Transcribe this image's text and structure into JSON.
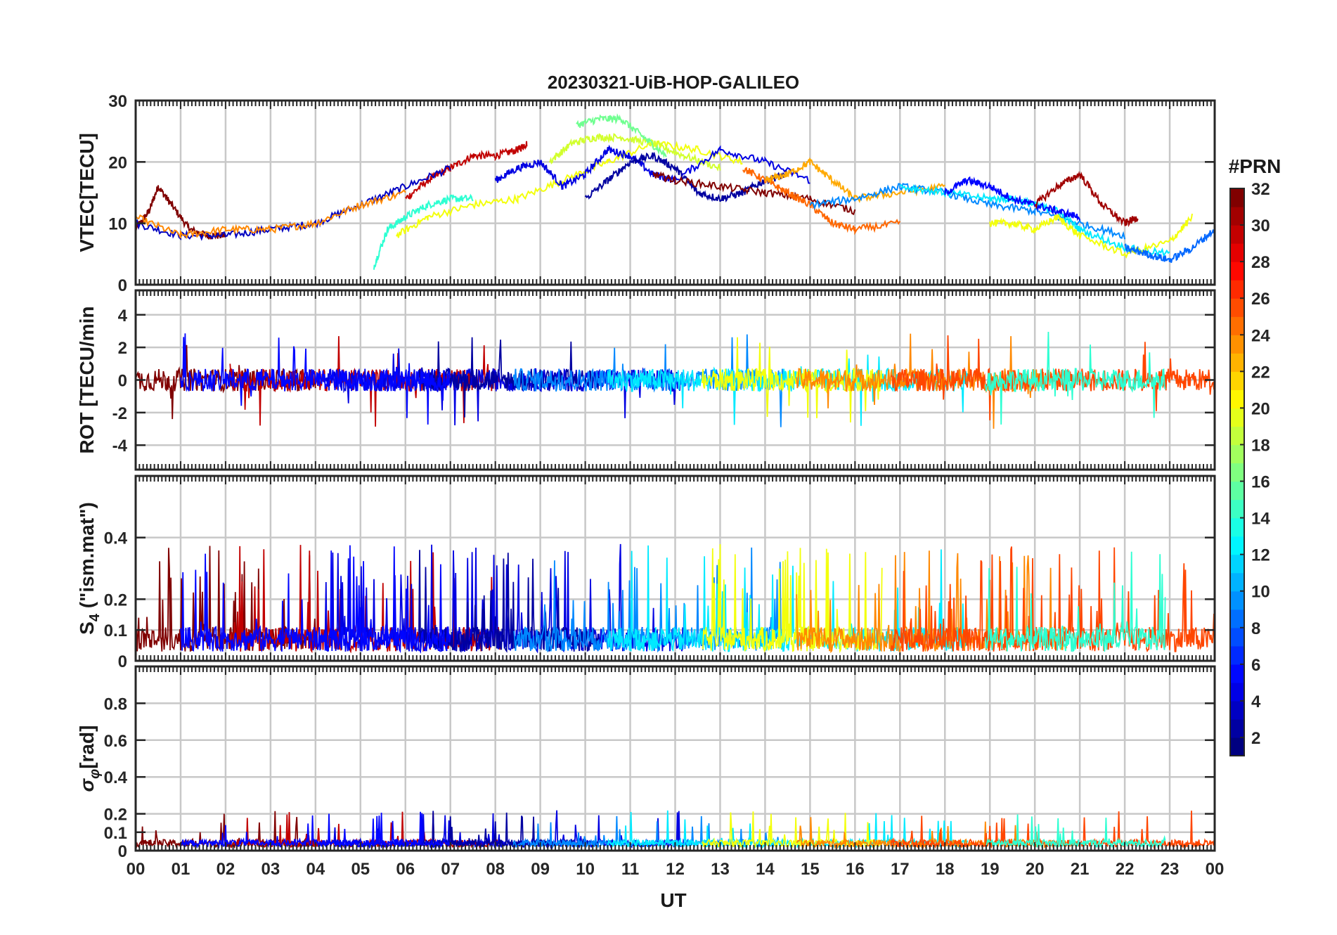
{
  "figure_title": "20230321-UiB-HOP-GALILEO",
  "colorbar": {
    "label": "#PRN",
    "ticks": [
      2,
      4,
      6,
      8,
      10,
      12,
      14,
      16,
      18,
      20,
      22,
      24,
      26,
      28,
      30,
      32
    ],
    "range": [
      1,
      32
    ],
    "colormap": "jet"
  },
  "chart_data": [
    {
      "type": "line",
      "ylabel": "VTEC[TECU]",
      "ylim": [
        0,
        30
      ],
      "yticks": [
        0,
        10,
        20,
        30
      ],
      "grid": true,
      "series": [
        {
          "prn": 33,
          "x": [
            0,
            0.3,
            0.5,
            0.8,
            1.2,
            1.6,
            2.0
          ],
          "y": [
            9,
            12,
            16,
            13,
            9,
            8,
            8
          ]
        },
        {
          "prn": 30,
          "x": [
            6.0,
            6.5,
            7.0,
            7.5,
            8.0,
            8.5,
            8.7
          ],
          "y": [
            14,
            17,
            19,
            21,
            21,
            22,
            23
          ]
        },
        {
          "prn": 3,
          "x": [
            0,
            1,
            2,
            3,
            4,
            5,
            6,
            7
          ],
          "y": [
            10,
            8,
            8,
            9,
            10,
            13,
            16,
            19
          ]
        },
        {
          "prn": 24,
          "x": [
            0,
            1,
            2,
            3,
            4,
            5,
            6
          ],
          "y": [
            11,
            8,
            9,
            9,
            10,
            13,
            15
          ]
        },
        {
          "prn": 14,
          "x": [
            5.3,
            5.6,
            6.0,
            6.5,
            7.0,
            7.5
          ],
          "y": [
            3,
            9,
            11,
            13,
            14,
            14
          ]
        },
        {
          "prn": 20,
          "x": [
            5.8,
            6.5,
            7.5,
            8.5,
            9.5,
            10.5,
            11.5,
            12.5,
            13.5
          ],
          "y": [
            8,
            11,
            13,
            14,
            17,
            20,
            23,
            22,
            20
          ]
        },
        {
          "prn": 19,
          "x": [
            9.2,
            9.7,
            10.2,
            10.8,
            11.5,
            12.2,
            13.0
          ],
          "y": [
            20,
            23,
            24,
            24,
            23,
            21,
            19
          ]
        },
        {
          "prn": 16,
          "x": [
            9.8,
            10.3,
            10.8,
            11.3,
            11.8
          ],
          "y": [
            26,
            27,
            27,
            24,
            21
          ]
        },
        {
          "prn": 4,
          "x": [
            8.0,
            8.5,
            9.0,
            9.5,
            10.0,
            10.5,
            11.0,
            11.5,
            12.0,
            13.0,
            14.0,
            15.0
          ],
          "y": [
            17,
            19,
            20,
            16,
            18,
            22,
            21,
            18,
            17,
            22,
            20,
            17
          ]
        },
        {
          "prn": 2,
          "x": [
            10.0,
            10.5,
            11.0,
            11.5,
            12.0,
            12.5,
            13.0,
            13.5,
            14.0,
            14.5
          ],
          "y": [
            14,
            17,
            20,
            21,
            19,
            15,
            14,
            15,
            17,
            18
          ]
        },
        {
          "prn": 32,
          "x": [
            11.5,
            12.0,
            13.0,
            14.0,
            15.0,
            16.0
          ],
          "y": [
            18,
            17,
            16,
            15,
            14,
            12
          ]
        },
        {
          "prn": 25,
          "x": [
            13.5,
            14.0,
            14.5,
            15.0,
            15.5,
            16.0,
            17.0
          ],
          "y": [
            19,
            17,
            15,
            13,
            10,
            9,
            10
          ]
        },
        {
          "prn": 23,
          "x": [
            14.0,
            14.5,
            15.0,
            15.5,
            16.0,
            17.0,
            18.0
          ],
          "y": [
            17,
            18,
            20,
            17,
            14,
            15,
            16
          ]
        },
        {
          "prn": 9,
          "x": [
            15.0,
            16.0,
            17.0,
            18.0,
            19.0,
            20.0,
            21.0,
            22.0
          ],
          "y": [
            13,
            14,
            16,
            15,
            13,
            12,
            10,
            8
          ]
        },
        {
          "prn": 12,
          "x": [
            17.0,
            18.0,
            19.0,
            19.5,
            20.0,
            20.5,
            21.0,
            22.0,
            23.0
          ],
          "y": [
            16,
            15,
            14,
            14,
            13,
            12,
            9,
            6,
            5
          ]
        },
        {
          "prn": 5,
          "x": [
            18.0,
            18.5,
            19.0,
            19.5,
            20.0,
            20.5,
            21.0
          ],
          "y": [
            15,
            17,
            16,
            14,
            13,
            12,
            11
          ]
        },
        {
          "prn": 31,
          "x": [
            20.0,
            20.5,
            21.0,
            21.5,
            22.0,
            22.3
          ],
          "y": [
            13,
            16,
            18,
            13,
            10,
            11
          ]
        },
        {
          "prn": 20,
          "x": [
            19.0,
            19.5,
            20.0,
            20.5,
            21.0,
            22.0,
            23.0,
            23.5
          ],
          "y": [
            10,
            10,
            9,
            11,
            8,
            5,
            7,
            11
          ]
        },
        {
          "prn": 8,
          "x": [
            22.0,
            22.5,
            23.0,
            23.5,
            24.0
          ],
          "y": [
            6,
            5,
            4,
            6,
            9
          ]
        }
      ]
    },
    {
      "type": "line",
      "ylabel": "ROT [TECU/min",
      "ylim": [
        -5.5,
        5.5
      ],
      "yticks": [
        -4,
        -2,
        0,
        2,
        4
      ],
      "grid": true
    },
    {
      "type": "line",
      "ylabel": "S4 (\"ism.mat\")",
      "ylabel_main": "S",
      "ylabel_sub": "4",
      "ylabel_rest": " (\"ism.mat\")",
      "ylim": [
        0,
        0.6
      ],
      "yticks": [
        0,
        0.1,
        0.2,
        0.4
      ],
      "ytick_labels": [
        "0",
        "0.1",
        "0.2",
        "0.4"
      ],
      "grid": true
    },
    {
      "type": "line",
      "ylabel": "σφ[rad]",
      "ylabel_main": "σ",
      "ylabel_sub": "φ",
      "ylabel_rest": "[rad]",
      "ylim": [
        0,
        1.0
      ],
      "yticks": [
        0,
        0.1,
        0.2,
        0.4,
        0.6,
        0.8
      ],
      "ytick_labels": [
        "0",
        "0.1",
        "0.2",
        "0.4",
        "0.6",
        "0.8"
      ],
      "grid": true
    }
  ],
  "x_axis": {
    "label": "UT",
    "range": [
      0,
      24
    ],
    "tick_labels": [
      "00",
      "01",
      "02",
      "03",
      "04",
      "05",
      "06",
      "07",
      "08",
      "09",
      "10",
      "11",
      "12",
      "13",
      "14",
      "15",
      "16",
      "17",
      "18",
      "19",
      "20",
      "21",
      "22",
      "23",
      "00"
    ]
  }
}
